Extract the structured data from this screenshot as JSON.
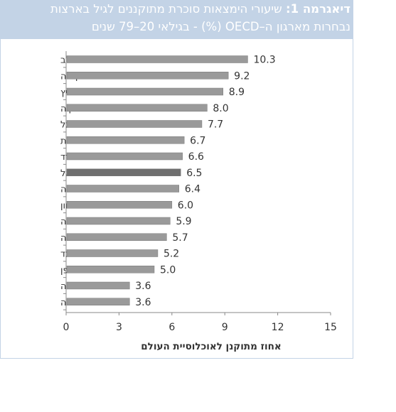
{
  "header": {
    "title_lead": "דיאגרמה 1:",
    "title_rest": "שיעורי הימצאות סוכרת מתוקננים לגיל בארצות",
    "subtitle": "נבחרות מארגון ה–OECD (%) - בגילאי 20–79 שנים"
  },
  "colors": {
    "bar": "#9a9a9a",
    "bar_highlight": "#6f6f6f",
    "header_bg": "#c3d3e6",
    "axis": "#888888",
    "text": "#333333"
  },
  "chart_data": {
    "type": "bar",
    "orientation": "horizontal",
    "categories": [
      "ארה\"ב",
      "קנדה",
      "שוויץ",
      "טורקיה",
      "פורטוגל",
      "צרפת",
      "ספרד",
      "ישראל",
      "הונגריה",
      "יוון",
      "איטליה",
      "אוסטרליה",
      "ניו זילנד",
      "יפן",
      "בריטניה",
      "נורווגיה"
    ],
    "values": [
      10.3,
      9.2,
      8.9,
      8.0,
      7.7,
      6.7,
      6.6,
      6.5,
      6.4,
      6.0,
      5.9,
      5.7,
      5.2,
      5.0,
      3.6,
      3.6
    ],
    "value_labels": [
      "10.3",
      "9.2",
      "8.9",
      "8.0",
      "7.7",
      "6.7",
      "6.6",
      "6.5",
      "6.4",
      "6.0",
      "5.9",
      "5.7",
      "5.2",
      "5.0",
      "3.6",
      "3.6"
    ],
    "highlight": "ישראל",
    "xlim": [
      0,
      15
    ],
    "xticks": [
      0,
      3,
      6,
      9,
      12,
      15
    ],
    "xtick_labels": [
      "0",
      "3",
      "6",
      "9",
      "12",
      "15"
    ],
    "xlabel": "אחוז מתוקנן לאוכלוסיית העולם",
    "grid": false
  }
}
